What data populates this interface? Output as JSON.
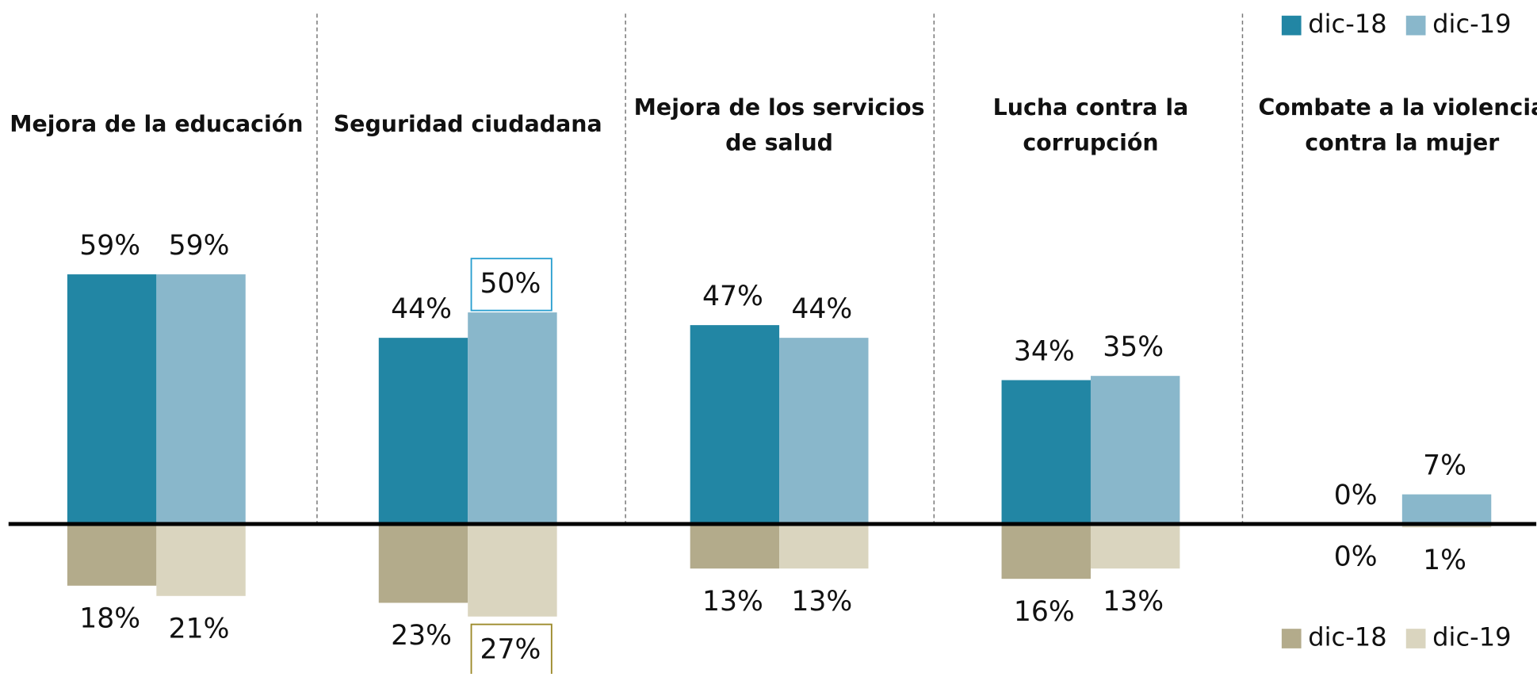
{
  "chart_data": {
    "type": "bar",
    "categories": [
      [
        "Mejora de la educación"
      ],
      [
        "Seguridad ciudadana"
      ],
      [
        "Mejora de los servicios",
        "de salud"
      ],
      [
        "Lucha contra la",
        "corrupción"
      ],
      [
        "Combate a la violencia",
        "contra la mujer"
      ]
    ],
    "series": [
      {
        "name": "dic-18",
        "color": "#2286a4",
        "direction": "up",
        "values": [
          59,
          44,
          47,
          34,
          0
        ],
        "value_labels": [
          "59%",
          "44%",
          "47%",
          "34%",
          "0%"
        ]
      },
      {
        "name": "dic-19",
        "color": "#89b7cb",
        "direction": "up",
        "values": [
          59,
          50,
          44,
          35,
          7
        ],
        "value_labels": [
          "59%",
          "50%",
          "44%",
          "35%",
          "7%"
        ],
        "highlight": [
          1
        ],
        "highlight_color": "#2a9fd0"
      },
      {
        "name": "dic-18",
        "color": "#b3ab8b",
        "direction": "down",
        "values": [
          18,
          23,
          13,
          16,
          0
        ],
        "value_labels": [
          "18%",
          "23%",
          "13%",
          "16%",
          "0%"
        ]
      },
      {
        "name": "dic-19",
        "color": "#dad5bf",
        "direction": "down",
        "values": [
          21,
          27,
          13,
          13,
          1
        ],
        "value_labels": [
          "21%",
          "27%",
          "13%",
          "13%",
          "1%"
        ],
        "highlight": [
          1
        ],
        "highlight_color": "#9c8a2a"
      }
    ]
  }
}
